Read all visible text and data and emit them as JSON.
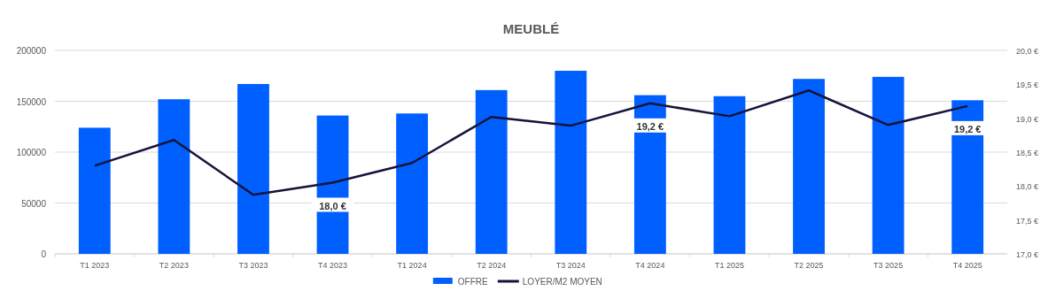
{
  "chart_data": {
    "type": "bar",
    "title": "MEUBLÉ",
    "categories": [
      "T1 2023",
      "T2 2023",
      "T3 2023",
      "T4 2023",
      "T1 2024",
      "T2 2024",
      "T3 2024",
      "T4 2024",
      "T1 2025",
      "T2 2025",
      "T3 2025",
      "T4 2025"
    ],
    "series": [
      {
        "name": "OFFRE",
        "color": "#0060ff",
        "values": [
          124000,
          152000,
          167000,
          136000,
          138000,
          161000,
          180000,
          156000,
          155000,
          172000,
          174000,
          151000
        ]
      },
      {
        "name": "LOYER/M2 MOYEN",
        "type": "line",
        "axis": "y2",
        "color": "#14133a",
        "values": [
          18.3,
          18.68,
          17.87,
          18.05,
          18.34,
          19.02,
          18.89,
          19.22,
          19.03,
          19.41,
          18.9,
          19.18
        ],
        "value_labels": [
          null,
          null,
          null,
          "18,0 €",
          null,
          null,
          null,
          "19,2 €",
          null,
          null,
          null,
          "19,2 €"
        ]
      }
    ],
    "ylim": [
      0,
      200000
    ],
    "yticks": [
      0,
      50000,
      100000,
      150000,
      200000
    ],
    "y2lim": [
      17,
      20
    ],
    "y2ticks": [
      {
        "value": 17,
        "label": "17,0 €"
      },
      {
        "value": 17.5,
        "label": "17,5 €"
      },
      {
        "value": 18,
        "label": "18,0 €"
      },
      {
        "value": 18.5,
        "label": "18,5 €"
      },
      {
        "value": 19,
        "label": "19,0 €"
      },
      {
        "value": 19.5,
        "label": "19,5 €"
      },
      {
        "value": 20,
        "label": "20,0 €"
      }
    ],
    "grid": "y",
    "legend": "bottom",
    "marker": "none",
    "line_style": "solid"
  }
}
